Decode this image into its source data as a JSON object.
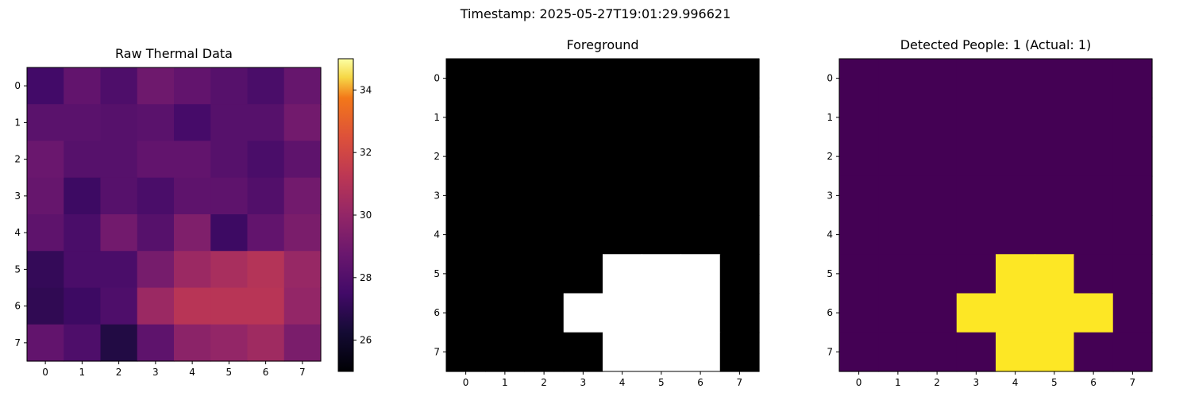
{
  "suptitle": "Timestamp: 2025-05-27T19:01:29.996621",
  "chart_data": [
    {
      "type": "heatmap",
      "title": "Raw Thermal Data",
      "colormap": "inferno",
      "vmin": 25,
      "vmax": 35,
      "x_ticks": [
        "0",
        "1",
        "2",
        "3",
        "4",
        "5",
        "6",
        "7"
      ],
      "y_ticks": [
        "0",
        "1",
        "2",
        "3",
        "4",
        "5",
        "6",
        "7"
      ],
      "colorbar_ticks": [
        26,
        28,
        30,
        32,
        34
      ],
      "values": [
        [
          27.0,
          27.8,
          27.3,
          28.1,
          27.8,
          27.5,
          27.2,
          27.9
        ],
        [
          27.6,
          27.6,
          27.5,
          27.6,
          27.1,
          27.5,
          27.5,
          28.2
        ],
        [
          28.0,
          27.5,
          27.5,
          27.8,
          27.8,
          27.5,
          27.2,
          27.7
        ],
        [
          27.9,
          26.9,
          27.5,
          27.2,
          27.7,
          27.7,
          27.4,
          28.2
        ],
        [
          27.7,
          27.2,
          28.2,
          27.5,
          28.5,
          26.9,
          27.8,
          28.4
        ],
        [
          26.7,
          27.2,
          27.2,
          28.3,
          29.2,
          29.5,
          29.8,
          29.1
        ],
        [
          26.6,
          26.9,
          27.3,
          29.2,
          29.9,
          29.9,
          29.9,
          29.0
        ],
        [
          27.8,
          27.3,
          26.3,
          27.7,
          28.8,
          29.0,
          29.3,
          28.4
        ]
      ]
    },
    {
      "type": "heatmap",
      "title": "Foreground",
      "colormap": "gray",
      "vmin": 0,
      "vmax": 1,
      "x_ticks": [
        "0",
        "1",
        "2",
        "3",
        "4",
        "5",
        "6",
        "7"
      ],
      "y_ticks": [
        "0",
        "1",
        "2",
        "3",
        "4",
        "5",
        "6",
        "7"
      ],
      "values": [
        [
          0,
          0,
          0,
          0,
          0,
          0,
          0,
          0
        ],
        [
          0,
          0,
          0,
          0,
          0,
          0,
          0,
          0
        ],
        [
          0,
          0,
          0,
          0,
          0,
          0,
          0,
          0
        ],
        [
          0,
          0,
          0,
          0,
          0,
          0,
          0,
          0
        ],
        [
          0,
          0,
          0,
          0,
          0,
          0,
          0,
          0
        ],
        [
          0,
          0,
          0,
          0,
          1,
          1,
          1,
          0
        ],
        [
          0,
          0,
          0,
          1,
          1,
          1,
          1,
          0
        ],
        [
          0,
          0,
          0,
          0,
          1,
          1,
          1,
          0
        ]
      ]
    },
    {
      "type": "heatmap",
      "title": "Detected People: 1 (Actual: 1)",
      "colormap": "viridis",
      "vmin": 0,
      "vmax": 1,
      "x_ticks": [
        "0",
        "1",
        "2",
        "3",
        "4",
        "5",
        "6",
        "7"
      ],
      "y_ticks": [
        "0",
        "1",
        "2",
        "3",
        "4",
        "5",
        "6",
        "7"
      ],
      "values": [
        [
          0,
          0,
          0,
          0,
          0,
          0,
          0,
          0
        ],
        [
          0,
          0,
          0,
          0,
          0,
          0,
          0,
          0
        ],
        [
          0,
          0,
          0,
          0,
          0,
          0,
          0,
          0
        ],
        [
          0,
          0,
          0,
          0,
          0,
          0,
          0,
          0
        ],
        [
          0,
          0,
          0,
          0,
          0,
          0,
          0,
          0
        ],
        [
          0,
          0,
          0,
          0,
          1,
          1,
          0,
          0
        ],
        [
          0,
          0,
          0,
          1,
          1,
          1,
          1,
          0
        ],
        [
          0,
          0,
          0,
          0,
          1,
          1,
          0,
          0
        ]
      ]
    }
  ]
}
